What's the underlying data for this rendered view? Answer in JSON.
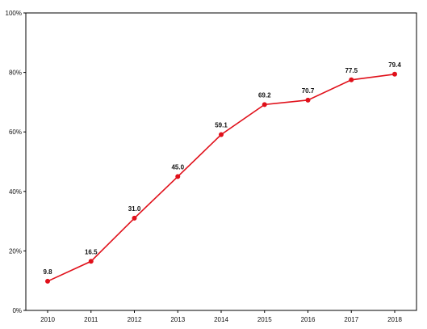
{
  "chart_data": {
    "type": "line",
    "x": [
      "2010",
      "2011",
      "2012",
      "2013",
      "2014",
      "2015",
      "2016",
      "2017",
      "2018"
    ],
    "series": [
      {
        "values": [
          9.8,
          16.5,
          31.0,
          45.0,
          59.1,
          69.2,
          70.7,
          77.5,
          79.4
        ],
        "labels": [
          "9.8",
          "16.5",
          "31.0",
          "45.0",
          "59.1",
          "69.2",
          "70.7",
          "77.5",
          "79.4"
        ]
      }
    ],
    "yticks": [
      0,
      20,
      40,
      60,
      80,
      100
    ],
    "ytick_labels": [
      "0%",
      "20%",
      "40%",
      "60%",
      "80%",
      "100%"
    ],
    "ylim": [
      0,
      100
    ],
    "grid": false,
    "legend": "none",
    "title": "",
    "xlabel": "",
    "ylabel": "",
    "line_color": "#e0101a",
    "marker_color": "#e0101a"
  }
}
